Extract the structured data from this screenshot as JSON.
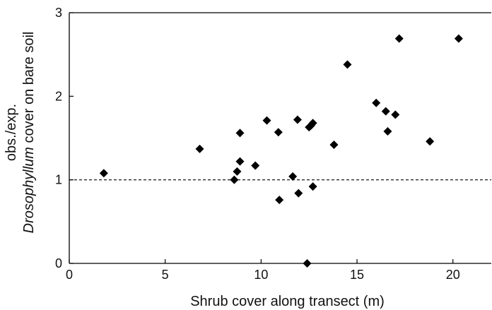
{
  "chart_data": {
    "type": "scatter",
    "title": "",
    "xlabel": "Shrub cover along transect (m)",
    "ylabel": {
      "line1": "obs./exp.",
      "line2_italic": "Drosophyllum",
      "line2_rest": " cover on bare soil"
    },
    "xlim": [
      0,
      22
    ],
    "ylim": [
      0,
      3
    ],
    "xticks": [
      0,
      5,
      10,
      15,
      20
    ],
    "yticks": [
      0,
      1,
      2,
      3
    ],
    "reference_line": {
      "y": 1,
      "style": "dashed"
    },
    "marker": "diamond",
    "marker_color": "#000000",
    "grid": false,
    "legend": "none",
    "points": [
      {
        "x": 1.8,
        "y": 1.08
      },
      {
        "x": 6.8,
        "y": 1.37
      },
      {
        "x": 8.6,
        "y": 1.0
      },
      {
        "x": 8.75,
        "y": 1.1
      },
      {
        "x": 8.9,
        "y": 1.22
      },
      {
        "x": 8.9,
        "y": 1.56
      },
      {
        "x": 9.7,
        "y": 1.17
      },
      {
        "x": 10.3,
        "y": 1.71
      },
      {
        "x": 10.9,
        "y": 1.57
      },
      {
        "x": 10.95,
        "y": 0.76
      },
      {
        "x": 11.65,
        "y": 1.04
      },
      {
        "x": 11.9,
        "y": 1.72
      },
      {
        "x": 11.95,
        "y": 0.84
      },
      {
        "x": 12.4,
        "y": 0.0
      },
      {
        "x": 12.5,
        "y": 1.63
      },
      {
        "x": 12.6,
        "y": 1.65
      },
      {
        "x": 12.7,
        "y": 1.68
      },
      {
        "x": 12.7,
        "y": 0.92
      },
      {
        "x": 13.8,
        "y": 1.42
      },
      {
        "x": 14.5,
        "y": 2.38
      },
      {
        "x": 16.0,
        "y": 1.92
      },
      {
        "x": 16.5,
        "y": 1.82
      },
      {
        "x": 16.6,
        "y": 1.58
      },
      {
        "x": 17.0,
        "y": 1.78
      },
      {
        "x": 17.2,
        "y": 2.69
      },
      {
        "x": 18.8,
        "y": 1.46
      },
      {
        "x": 20.3,
        "y": 2.69
      }
    ]
  }
}
